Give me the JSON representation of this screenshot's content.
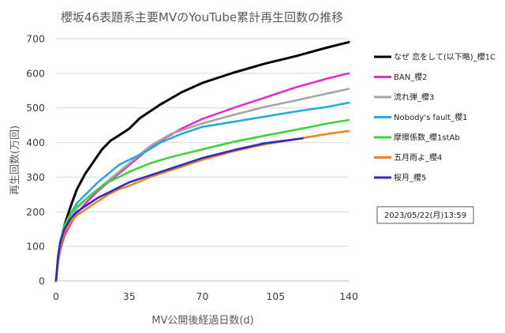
{
  "chart_data": {
    "type": "line",
    "title": "櫻坂46表題系主要MVのYouTube累計再生回数の推移",
    "xlabel": "MV公開後経過日数(d)",
    "ylabel": "再生回数(万回)",
    "xlim": [
      0,
      140
    ],
    "ylim": [
      0,
      700
    ],
    "xticks": [
      0,
      35,
      70,
      105,
      140
    ],
    "yticks": [
      0,
      100,
      200,
      300,
      400,
      500,
      600,
      700
    ],
    "grid": "horizontal",
    "legend": "right",
    "annotation": "2023/05/22(月)13:59",
    "series": [
      {
        "name": "なぜ 恋をして(以下略)_櫻1C",
        "color": "#000000",
        "x": [
          0,
          1,
          2,
          4,
          7,
          10,
          14,
          18,
          22,
          26,
          30,
          35,
          40,
          50,
          60,
          70,
          85,
          100,
          115,
          130,
          140
        ],
        "y": [
          0,
          70,
          110,
          160,
          215,
          265,
          310,
          345,
          380,
          405,
          420,
          440,
          470,
          510,
          545,
          572,
          602,
          628,
          650,
          675,
          690
        ]
      },
      {
        "name": "BAN_櫻2",
        "color": "#e52fc2",
        "x": [
          0,
          1,
          2,
          4,
          7,
          10,
          15,
          20,
          25,
          30,
          35,
          42,
          50,
          60,
          70,
          85,
          100,
          115,
          130,
          140
        ],
        "y": [
          0,
          55,
          90,
          130,
          165,
          195,
          230,
          260,
          285,
          310,
          335,
          370,
          405,
          440,
          468,
          500,
          530,
          560,
          585,
          600
        ]
      },
      {
        "name": "流れ弾_櫻3",
        "color": "#a6a6a6",
        "x": [
          0,
          1,
          2,
          4,
          7,
          10,
          15,
          20,
          25,
          30,
          35,
          45,
          55,
          70,
          85,
          100,
          115,
          130,
          140
        ],
        "y": [
          0,
          60,
          100,
          145,
          185,
          210,
          240,
          265,
          290,
          315,
          340,
          390,
          425,
          455,
          480,
          503,
          522,
          542,
          555
        ]
      },
      {
        "name": "Nobody's fault_櫻1",
        "color": "#27a9e1",
        "x": [
          0,
          1,
          2,
          4,
          7,
          10,
          15,
          20,
          25,
          30,
          35,
          42,
          50,
          60,
          70,
          85,
          100,
          115,
          130,
          140
        ],
        "y": [
          0,
          65,
          110,
          155,
          195,
          225,
          255,
          285,
          310,
          335,
          350,
          370,
          400,
          425,
          445,
          460,
          475,
          490,
          503,
          515
        ]
      },
      {
        "name": "摩擦係数_櫻1stAb",
        "color": "#3fd33b",
        "x": [
          0,
          1,
          2,
          4,
          7,
          10,
          15,
          20,
          25,
          30,
          35,
          45,
          55,
          70,
          85,
          100,
          115,
          130,
          140
        ],
        "y": [
          0,
          70,
          115,
          160,
          195,
          215,
          240,
          265,
          285,
          300,
          315,
          340,
          358,
          380,
          402,
          420,
          437,
          455,
          465
        ]
      },
      {
        "name": "五月雨よ_櫻4",
        "color": "#f58220",
        "x": [
          0,
          1,
          2,
          4,
          7,
          10,
          15,
          20,
          25,
          30,
          35,
          45,
          55,
          70,
          85,
          100,
          115,
          130,
          140
        ],
        "y": [
          0,
          60,
          100,
          140,
          170,
          190,
          210,
          230,
          250,
          265,
          275,
          300,
          320,
          350,
          375,
          395,
          410,
          425,
          433
        ]
      },
      {
        "name": "桜月_櫻5",
        "color": "#2d2dbf",
        "x": [
          0,
          1,
          2,
          4,
          7,
          10,
          15,
          20,
          25,
          30,
          35,
          45,
          55,
          70,
          85,
          100,
          118
        ],
        "y": [
          0,
          70,
          110,
          150,
          180,
          200,
          220,
          240,
          255,
          270,
          285,
          305,
          325,
          355,
          378,
          398,
          412
        ]
      }
    ]
  }
}
